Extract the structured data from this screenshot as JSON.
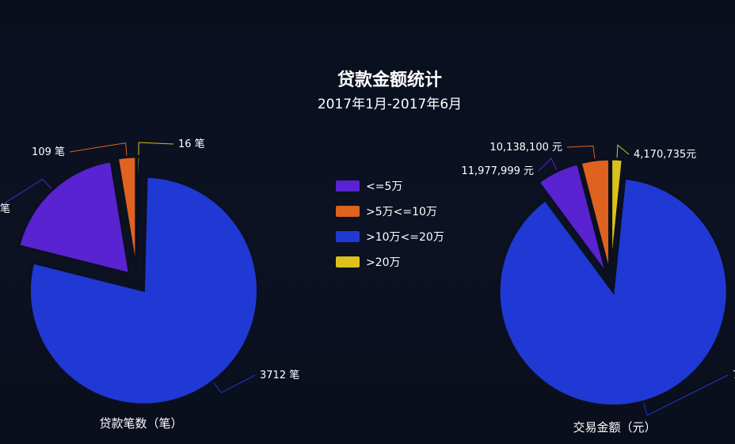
{
  "chart_data": {
    "type": "pie",
    "title": "贷款金额统计",
    "subtitle": "2017年1月-2017年6月",
    "categories": [
      "<=5万",
      ">5万<=10万",
      ">10万<=20万",
      ">20万"
    ],
    "colors": [
      "#5a23d1",
      "#e0621f",
      "#2039d4",
      "#dcc11a"
    ],
    "legend_position": "center",
    "pies": [
      {
        "name": "贷款笔数（笔）",
        "values": [
          null,
          109,
          3712,
          16
        ],
        "labels": [
          "",
          "109 笔",
          "3712 笔",
          "16 笔"
        ],
        "visible_label_fragments": [
          "笔",
          "",
          "",
          ""
        ],
        "approx_share": [
          0.185,
          0.026,
          0.786,
          0.004
        ]
      },
      {
        "name": "交易金额（元）",
        "values": [
          11977999,
          10138100,
          null,
          4170735
        ],
        "labels": [
          "11,977,999 元",
          "10,138,100 元",
          "",
          "4,170,735元"
        ],
        "visible_label_fragments": [
          "",
          "",
          "7",
          ""
        ],
        "approx_share": [
          0.06,
          0.04,
          0.87,
          0.016
        ]
      }
    ]
  }
}
